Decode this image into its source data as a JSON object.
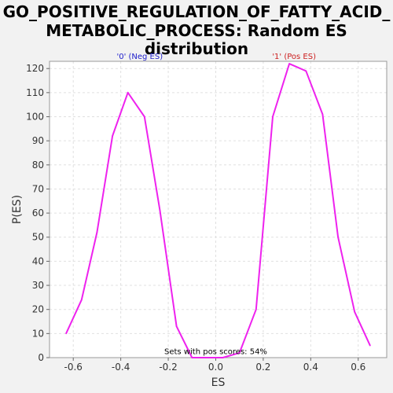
{
  "chart_data": {
    "type": "line",
    "title_lines": [
      "GO_POSITIVE_REGULATION_OF_FATTY_ACID_",
      "METABOLIC_PROCESS: Random ES",
      "distribution"
    ],
    "xlabel": "ES",
    "ylabel": "P(ES)",
    "xlim": [
      -0.7,
      0.72
    ],
    "ylim": [
      0,
      123
    ],
    "x_ticks": [
      -0.6,
      -0.4,
      -0.2,
      0.0,
      0.2,
      0.4,
      0.6
    ],
    "x_tick_labels": [
      "-0.6",
      "-0.4",
      "-0.2",
      "0.0",
      "0.2",
      "0.4",
      "0.6"
    ],
    "y_ticks": [
      0,
      10,
      20,
      30,
      40,
      50,
      60,
      70,
      80,
      90,
      100,
      110,
      120
    ],
    "y_tick_labels": [
      "0",
      "10",
      "20",
      "30",
      "40",
      "50",
      "60",
      "70",
      "80",
      "90",
      "100",
      "110",
      "120"
    ],
    "grid": true,
    "line_color": "#ee22ee",
    "series": [
      {
        "x": [
          -0.63,
          -0.565,
          -0.5,
          -0.435,
          -0.37,
          -0.3,
          -0.235,
          -0.165,
          -0.1,
          -0.035,
          0.03,
          0.1,
          0.17,
          0.24,
          0.31,
          0.38,
          0.45,
          0.515,
          0.585,
          0.65
        ],
        "values": [
          10,
          24,
          52,
          92,
          110,
          100,
          61,
          13,
          0,
          0,
          0,
          2,
          20,
          100,
          122,
          119,
          101,
          50,
          19,
          5
        ]
      }
    ],
    "annotations": [
      {
        "text": "'0' (Neg ES)",
        "x": -0.32,
        "y": 124,
        "color": "#2020cc"
      },
      {
        "text": "'1' (Pos ES)",
        "x": 0.33,
        "y": 124,
        "color": "#cc2020"
      },
      {
        "text": "Sets with pos scores: 54%",
        "x": 0.0,
        "y": 1.5,
        "color": "#000000"
      }
    ]
  }
}
